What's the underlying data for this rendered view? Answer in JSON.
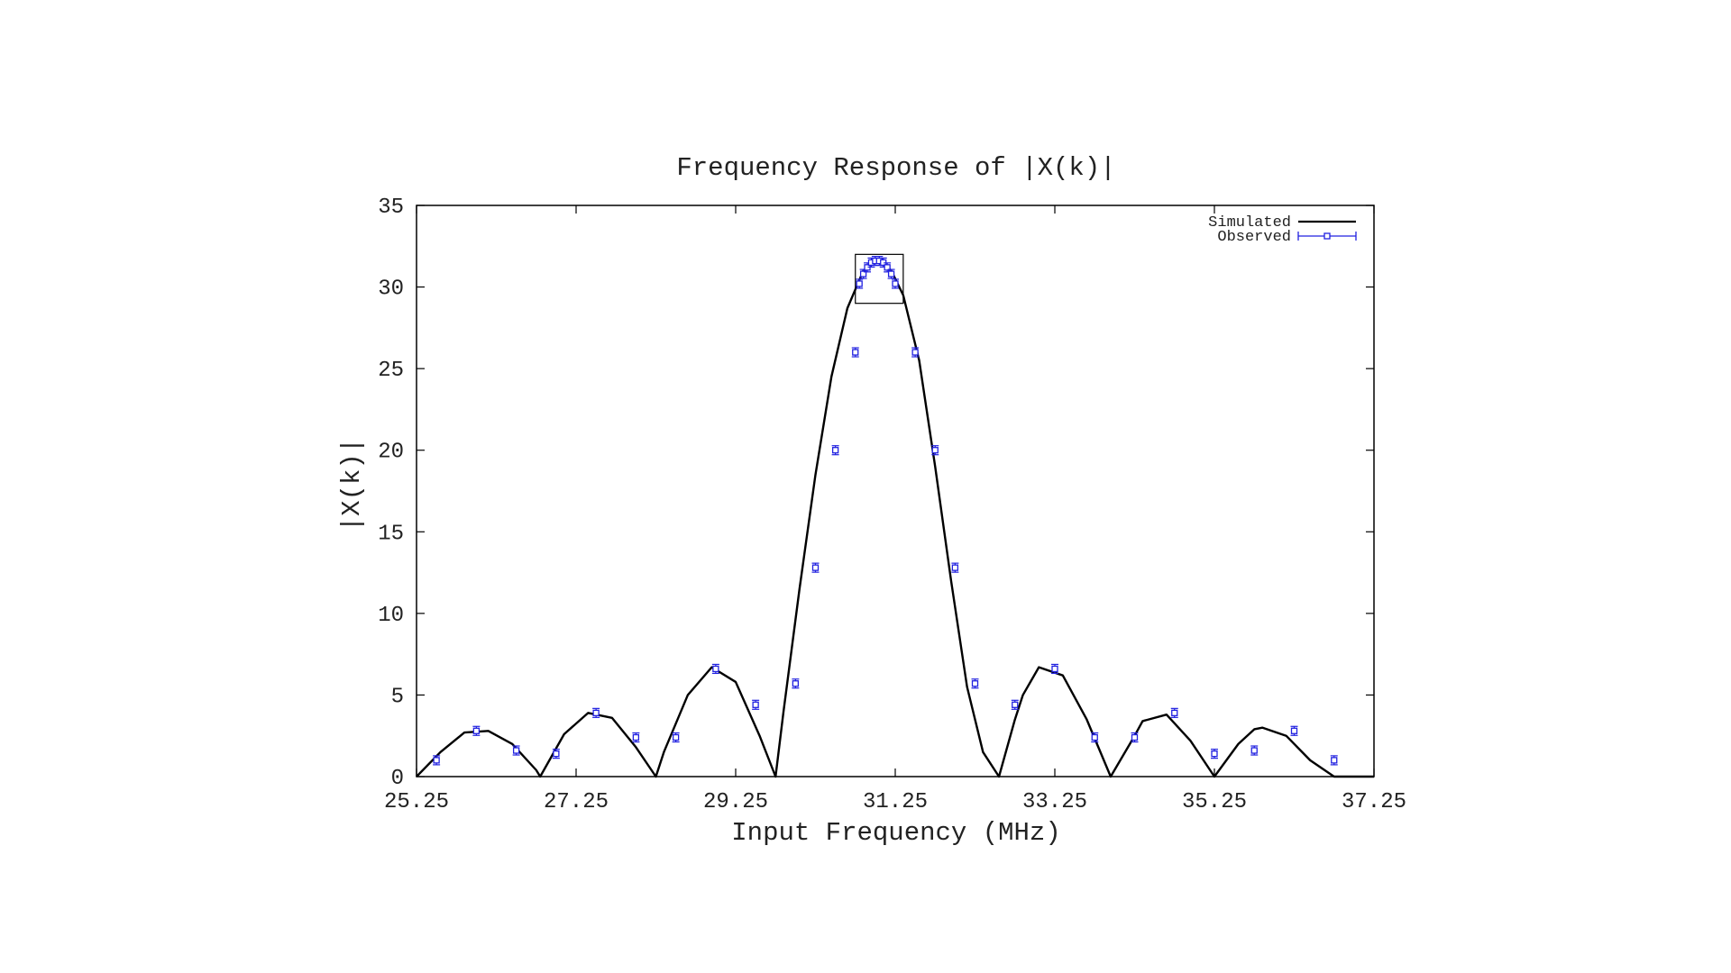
{
  "chart_data": {
    "type": "line",
    "title": "Frequency Response of |X(k)|",
    "xlabel": "Input Frequency (MHz)",
    "ylabel": "|X(k)|",
    "xlim": [
      25.25,
      37.25
    ],
    "ylim": [
      0,
      35
    ],
    "xticks": [
      "25.25",
      "27.25",
      "29.25",
      "31.25",
      "33.25",
      "35.25",
      "37.25"
    ],
    "yticks": [
      "0",
      "5",
      "10",
      "15",
      "20",
      "25",
      "30",
      "35"
    ],
    "grid": false,
    "legend_position": "top-right",
    "zoom_box": {
      "x": [
        30.75,
        31.35
      ],
      "y": [
        29.0,
        32.0
      ]
    },
    "series": [
      {
        "name": "Simulated",
        "color": "#000000",
        "style": "line",
        "x": [
          25.25,
          25.55,
          25.85,
          26.15,
          26.45,
          26.75,
          26.8,
          27.1,
          27.4,
          27.7,
          28.0,
          28.25,
          28.35,
          28.65,
          28.95,
          29.25,
          29.55,
          29.75,
          29.85,
          30.05,
          30.25,
          30.45,
          30.65,
          30.85,
          31.0,
          31.1,
          31.2,
          31.35,
          31.55,
          31.75,
          31.95,
          32.15,
          32.35,
          32.55,
          32.75,
          32.85,
          33.05,
          33.35,
          33.65,
          33.95,
          34.25,
          34.35,
          34.65,
          34.95,
          35.25,
          35.55,
          35.75,
          35.85,
          36.15,
          36.45,
          36.75,
          37.05,
          37.25
        ],
        "y": [
          0.0,
          1.5,
          2.7,
          2.8,
          2.0,
          0.4,
          0.0,
          2.6,
          3.9,
          3.6,
          1.8,
          0.0,
          1.5,
          5.0,
          6.7,
          5.8,
          2.5,
          0.0,
          4.0,
          11.5,
          18.5,
          24.5,
          28.7,
          31.0,
          31.6,
          31.5,
          31.0,
          29.5,
          25.5,
          19.0,
          12.0,
          5.5,
          1.5,
          0.0,
          3.5,
          5.0,
          6.7,
          6.2,
          3.5,
          0.0,
          2.5,
          3.4,
          3.8,
          2.2,
          0.0,
          2.0,
          2.9,
          3.0,
          2.5,
          1.0,
          0.0,
          0.0,
          0.0
        ]
      },
      {
        "name": "Observed",
        "color": "#2020e0",
        "style": "points-errorbars",
        "x": [
          25.5,
          26.0,
          26.5,
          27.0,
          27.5,
          28.0,
          28.5,
          29.0,
          29.5,
          30.0,
          30.25,
          30.5,
          30.75,
          30.8,
          30.85,
          30.9,
          30.95,
          31.0,
          31.05,
          31.1,
          31.15,
          31.2,
          31.25,
          31.5,
          31.75,
          32.0,
          32.25,
          32.75,
          33.25,
          33.75,
          34.25,
          34.75,
          35.25,
          35.75,
          36.25,
          36.75
        ],
        "y": [
          1.0,
          2.8,
          1.6,
          1.4,
          3.9,
          2.4,
          2.4,
          6.6,
          4.4,
          5.7,
          12.8,
          20.0,
          26.0,
          30.2,
          30.8,
          31.2,
          31.5,
          31.6,
          31.6,
          31.5,
          31.2,
          30.8,
          30.2,
          26.0,
          20.0,
          12.8,
          5.7,
          4.4,
          6.6,
          2.4,
          2.4,
          3.9,
          1.4,
          1.6,
          2.8,
          1.0
        ]
      }
    ]
  }
}
